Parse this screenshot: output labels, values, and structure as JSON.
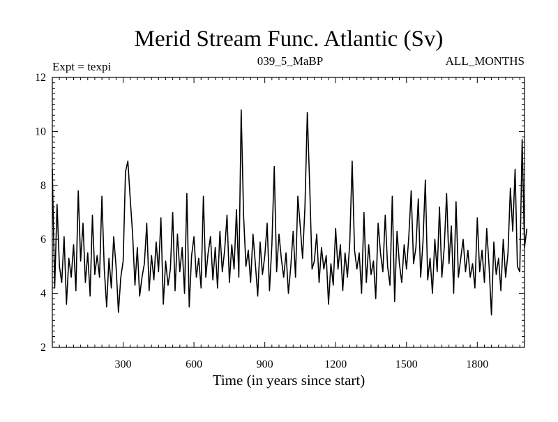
{
  "colors": {
    "line": "#000000",
    "background": "#ffffff",
    "axis": "#000000"
  },
  "chart_data": {
    "type": "line",
    "title": "Merid Stream Func. Atlantic (Sv)",
    "subtitle_left": "Expt = texpi",
    "subtitle_center": "039_5_MaBP",
    "subtitle_right": "ALL_MONTHS",
    "xlabel": "Time (in years since start)",
    "ylabel": "",
    "xlim": [
      0,
      2000
    ],
    "ylim": [
      2,
      12
    ],
    "xticks": [
      300,
      600,
      900,
      1200,
      1500,
      1800
    ],
    "xtick_labels": [
      "300",
      "600",
      "900",
      "1200",
      "1500",
      "1800"
    ],
    "yticks": [
      2,
      4,
      6,
      8,
      10,
      12
    ],
    "ytick_labels": [
      "2",
      "4",
      "6",
      "8",
      "10",
      "12"
    ],
    "grid": false,
    "series": [
      {
        "name": "Merid Stream Func. Atlantic",
        "x_start": 0,
        "x_step": 10,
        "values": [
          8.6,
          4.2,
          7.3,
          5.0,
          4.4,
          6.1,
          3.6,
          5.3,
          4.6,
          5.8,
          4.1,
          7.8,
          5.2,
          6.6,
          4.4,
          5.5,
          3.9,
          6.9,
          4.7,
          5.4,
          4.6,
          7.6,
          4.9,
          3.5,
          5.3,
          4.2,
          6.1,
          5.0,
          3.3,
          4.6,
          5.2,
          8.5,
          8.9,
          7.5,
          6.2,
          4.3,
          5.7,
          3.9,
          4.6,
          5.1,
          6.6,
          4.1,
          5.4,
          4.5,
          5.9,
          4.8,
          6.8,
          3.6,
          5.2,
          4.3,
          4.9,
          7.0,
          4.1,
          6.2,
          4.8,
          5.7,
          4.0,
          7.7,
          3.5,
          5.4,
          6.1,
          4.6,
          5.3,
          4.2,
          7.6,
          4.6,
          5.5,
          6.1,
          4.5,
          5.7,
          4.2,
          6.3,
          4.8,
          5.6,
          6.9,
          4.4,
          5.8,
          4.9,
          7.1,
          4.6,
          10.8,
          6.9,
          5.0,
          5.6,
          4.4,
          6.2,
          5.1,
          3.9,
          5.9,
          4.7,
          5.4,
          6.6,
          4.1,
          5.8,
          8.7,
          4.8,
          6.2,
          5.3,
          4.6,
          5.5,
          4.0,
          5.0,
          6.3,
          4.6,
          7.6,
          6.5,
          5.3,
          7.2,
          10.7,
          8.0,
          4.9,
          5.2,
          6.2,
          4.4,
          5.7,
          4.9,
          5.4,
          3.6,
          5.1,
          4.3,
          6.4,
          4.9,
          5.8,
          4.1,
          5.5,
          4.6,
          5.9,
          8.9,
          5.6,
          4.9,
          5.5,
          4.0,
          7.0,
          4.4,
          5.8,
          4.7,
          5.2,
          3.8,
          6.6,
          5.5,
          4.8,
          6.9,
          5.0,
          4.3,
          7.6,
          3.7,
          6.3,
          5.1,
          4.4,
          5.8,
          4.9,
          6.1,
          7.8,
          5.1,
          5.7,
          7.5,
          4.6,
          5.9,
          8.2,
          4.5,
          5.3,
          4.0,
          6.0,
          4.8,
          7.2,
          4.6,
          5.7,
          7.7,
          5.1,
          6.5,
          4.0,
          7.4,
          4.6,
          5.3,
          6.0,
          4.8,
          5.6,
          4.6,
          5.1,
          4.2,
          6.8,
          4.8,
          5.6,
          4.4,
          6.4,
          5.0,
          3.2,
          5.9,
          4.7,
          5.3,
          4.1,
          6.0,
          4.6,
          5.5,
          7.9,
          6.3,
          8.6,
          5.0,
          4.8,
          9.7,
          5.7,
          6.4
        ]
      }
    ]
  }
}
